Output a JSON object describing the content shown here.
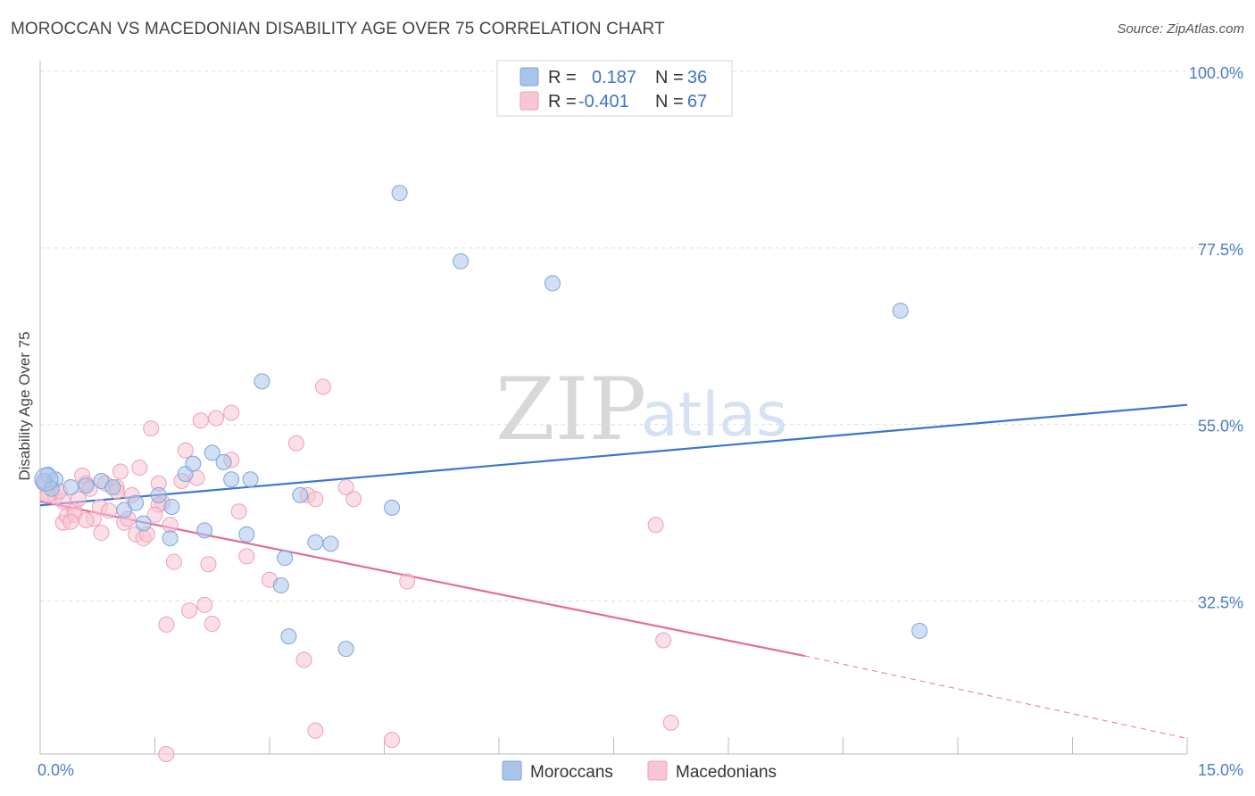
{
  "title": "MOROCCAN VS MACEDONIAN DISABILITY AGE OVER 75 CORRELATION CHART",
  "source": "Source: ZipAtlas.com",
  "watermark": {
    "part1": "ZIP",
    "part2": "atlas"
  },
  "legend": {
    "r_label": "R =",
    "n_label": "N =",
    "rows": [
      {
        "r": "0.187",
        "n": "36",
        "color": "#a9c4ea",
        "stroke": "#7ea4d9"
      },
      {
        "r": "-0.401",
        "n": "67",
        "color": "#f7c5d3",
        "stroke": "#ee9fb7"
      }
    ]
  },
  "bottom_legend": [
    "Moroccans",
    "Macedonians"
  ],
  "chart_data": {
    "type": "scatter",
    "title": "MOROCCAN VS MACEDONIAN DISABILITY AGE OVER 75 CORRELATION CHART",
    "xlabel": "",
    "ylabel": "Disability Age Over 75",
    "xlim": [
      0,
      15
    ],
    "ylim": [
      13,
      100
    ],
    "x_tick_labels": [
      "0.0%",
      "15.0%"
    ],
    "y_ticks": [
      100,
      77.5,
      55,
      32.5
    ],
    "y_tick_labels": [
      "100.0%",
      "77.5%",
      "55.0%",
      "32.5%"
    ],
    "grid": true,
    "series": [
      {
        "name": "Moroccans",
        "color": "#a9c4ea",
        "stroke": "#7ea4d9",
        "points": [
          [
            0.1,
            48.6
          ],
          [
            0.2,
            48.0
          ],
          [
            0.4,
            47.0
          ],
          [
            0.6,
            47.2
          ],
          [
            0.8,
            47.8
          ],
          [
            0.95,
            47.0
          ],
          [
            1.1,
            44.1
          ],
          [
            1.25,
            45.0
          ],
          [
            1.35,
            42.4
          ],
          [
            1.55,
            46.0
          ],
          [
            1.7,
            40.5
          ],
          [
            1.72,
            44.5
          ],
          [
            1.9,
            48.7
          ],
          [
            2.0,
            50.0
          ],
          [
            2.15,
            41.5
          ],
          [
            2.25,
            51.4
          ],
          [
            2.4,
            50.2
          ],
          [
            2.5,
            48.0
          ],
          [
            2.7,
            41.0
          ],
          [
            2.75,
            48.0
          ],
          [
            2.9,
            60.5
          ],
          [
            3.15,
            34.5
          ],
          [
            3.2,
            38.0
          ],
          [
            3.25,
            28.0
          ],
          [
            3.4,
            46.0
          ],
          [
            3.6,
            40.0
          ],
          [
            3.8,
            39.8
          ],
          [
            4.0,
            26.4
          ],
          [
            4.6,
            44.4
          ],
          [
            4.7,
            84.5
          ],
          [
            5.5,
            75.8
          ],
          [
            6.7,
            73.0
          ],
          [
            11.25,
            69.5
          ],
          [
            11.5,
            28.7
          ],
          [
            0.05,
            47.8
          ],
          [
            0.15,
            46.8
          ]
        ],
        "trend": {
          "x1": 0,
          "y1": 44.7,
          "x2": 15,
          "y2": 57.5
        }
      },
      {
        "name": "Macedonians",
        "color": "#f7c5d3",
        "stroke": "#ee9fb7",
        "points": [
          [
            0.05,
            47.5
          ],
          [
            0.12,
            46.2
          ],
          [
            0.2,
            45.8
          ],
          [
            0.3,
            42.5
          ],
          [
            0.35,
            43.3
          ],
          [
            0.45,
            44.0
          ],
          [
            0.5,
            45.5
          ],
          [
            0.55,
            48.5
          ],
          [
            0.6,
            47.5
          ],
          [
            0.65,
            46.8
          ],
          [
            0.7,
            43.0
          ],
          [
            0.78,
            44.5
          ],
          [
            0.85,
            47.5
          ],
          [
            0.9,
            44.0
          ],
          [
            1.0,
            47.0
          ],
          [
            1.05,
            49.0
          ],
          [
            1.1,
            42.5
          ],
          [
            1.2,
            46.0
          ],
          [
            1.25,
            41.0
          ],
          [
            1.3,
            49.5
          ],
          [
            1.35,
            40.5
          ],
          [
            1.4,
            41.0
          ],
          [
            1.45,
            54.5
          ],
          [
            1.55,
            47.5
          ],
          [
            1.6,
            45.0
          ],
          [
            1.7,
            42.2
          ],
          [
            1.75,
            37.5
          ],
          [
            1.65,
            29.5
          ],
          [
            1.65,
            13.0
          ],
          [
            1.9,
            51.7
          ],
          [
            1.95,
            31.3
          ],
          [
            2.05,
            48.2
          ],
          [
            2.1,
            55.5
          ],
          [
            2.2,
            37.2
          ],
          [
            2.25,
            29.6
          ],
          [
            2.5,
            50.5
          ],
          [
            2.6,
            43.9
          ],
          [
            2.7,
            38.2
          ],
          [
            2.5,
            56.5
          ],
          [
            3.0,
            35.2
          ],
          [
            3.35,
            52.6
          ],
          [
            3.5,
            46.0
          ],
          [
            3.6,
            16.0
          ],
          [
            3.6,
            45.5
          ],
          [
            3.7,
            59.8
          ],
          [
            4.0,
            47.0
          ],
          [
            4.1,
            45.5
          ],
          [
            4.6,
            14.8
          ],
          [
            4.8,
            35.0
          ],
          [
            8.05,
            42.2
          ],
          [
            8.15,
            27.5
          ],
          [
            8.25,
            17.0
          ],
          [
            1.55,
            44.8
          ],
          [
            0.3,
            45.2
          ],
          [
            0.45,
            43.5
          ],
          [
            0.8,
            41.2
          ],
          [
            1.15,
            43.0
          ],
          [
            2.15,
            32.0
          ],
          [
            3.45,
            25.0
          ],
          [
            0.25,
            46.5
          ],
          [
            0.6,
            42.8
          ],
          [
            1.85,
            47.8
          ],
          [
            0.1,
            46.0
          ],
          [
            1.5,
            43.5
          ],
          [
            2.3,
            55.8
          ],
          [
            0.4,
            42.6
          ],
          [
            1.0,
            46.5
          ]
        ],
        "trend": {
          "x1": 0,
          "y1": 45.2,
          "x2": 10.0,
          "y2": 25.5
        },
        "trend_dashed": {
          "x1": 10.0,
          "y1": 25.5,
          "x2": 15,
          "y2": 15.0
        }
      }
    ]
  }
}
